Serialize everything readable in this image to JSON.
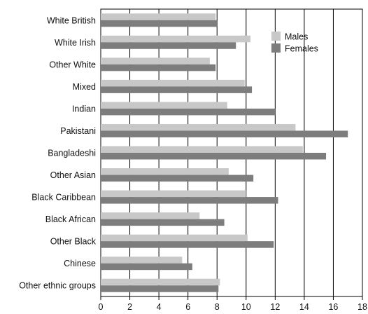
{
  "chart_data": {
    "type": "bar",
    "orientation": "horizontal",
    "categories": [
      "White British",
      "White Irish",
      "Other White",
      "Mixed",
      "Indian",
      "Pakistani",
      "Bangladeshi",
      "Other Asian",
      "Black Caribbean",
      "Black African",
      "Other Black",
      "Chinese",
      "Other ethnic groups"
    ],
    "series": [
      {
        "name": "Males",
        "color": "#c8c8c8",
        "values": [
          7.9,
          10.3,
          7.5,
          9.9,
          8.7,
          13.4,
          13.9,
          8.8,
          10.0,
          6.8,
          10.1,
          5.6,
          8.2
        ]
      },
      {
        "name": "Females",
        "color": "#7d7d7d",
        "values": [
          8.0,
          9.3,
          7.9,
          10.4,
          12.0,
          17.0,
          15.5,
          10.5,
          12.2,
          8.5,
          11.9,
          6.3,
          8.1
        ]
      }
    ],
    "xlim": [
      0,
      18
    ],
    "xticks": [
      0,
      2,
      4,
      6,
      8,
      10,
      12,
      14,
      16,
      18
    ],
    "grid": "vertical",
    "legend": "top-right",
    "title": "",
    "xlabel": "",
    "ylabel": ""
  }
}
